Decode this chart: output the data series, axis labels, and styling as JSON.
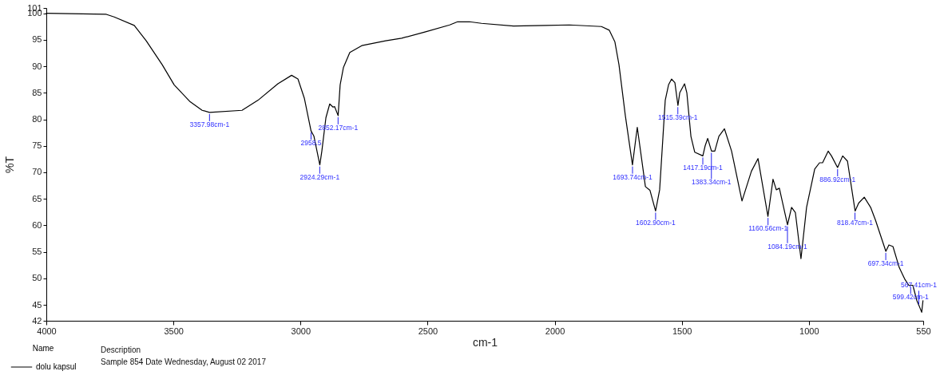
{
  "chart_data": {
    "type": "line",
    "xlabel": "cm-1",
    "ylabel": "%T",
    "legend_title": "Name",
    "legend": "bottom left",
    "marker": "none",
    "line_style": "solid",
    "xlim": [
      4000,
      550
    ],
    "xticks": [
      4000,
      3500,
      3000,
      2500,
      2000,
      1500,
      1000,
      550
    ],
    "ylim": [
      42,
      101
    ],
    "yticks": [
      42,
      45,
      50,
      55,
      60,
      65,
      70,
      75,
      80,
      85,
      90,
      95,
      100,
      101
    ],
    "series": [
      {
        "name": "dolu kapsul",
        "color": "#000000",
        "x": [
          4000,
          3764,
          3733,
          3654,
          3607,
          3544,
          3497,
          3434,
          3387,
          3358,
          3230,
          3167,
          3089,
          3035,
          3010,
          2985,
          2958.5,
          2947,
          2924,
          2916,
          2900,
          2885,
          2872,
          2866,
          2852,
          2844,
          2831,
          2806,
          2759,
          2665,
          2602,
          2508,
          2413,
          2382,
          2335,
          2288,
          2162,
          2036,
          1942,
          1816,
          1785,
          1763,
          1747,
          1722,
          1694,
          1675,
          1643,
          1625,
          1603,
          1587,
          1565,
          1552,
          1540,
          1527,
          1515,
          1508,
          1489,
          1480,
          1464,
          1449,
          1417,
          1408,
          1398,
          1383,
          1370,
          1354,
          1332,
          1304,
          1263,
          1226,
          1200,
          1161,
          1141,
          1128,
          1116,
          1084,
          1068,
          1053,
          1031,
          1009,
          977,
          958,
          946,
          924,
          911,
          887,
          867,
          848,
          818,
          804,
          782,
          757,
          738,
          697,
          685,
          669,
          644,
          622,
          607,
          591,
          575,
          566,
          556,
          551
        ],
        "values": [
          100,
          99.8,
          99.3,
          97.7,
          94.8,
          90.3,
          86.5,
          83.3,
          81.7,
          81.3,
          81.7,
          83.6,
          86.7,
          88.3,
          87.6,
          84,
          77.8,
          76.8,
          71.4,
          74,
          80.3,
          82.9,
          82.3,
          82.4,
          80.7,
          86.5,
          89.8,
          92.6,
          93.9,
          94.8,
          95.3,
          96.5,
          97.8,
          98.4,
          98.4,
          98.1,
          97.6,
          97.7,
          97.8,
          97.5,
          96.8,
          94.6,
          90.3,
          80.7,
          71.4,
          78.5,
          67.3,
          66.6,
          62.7,
          66.7,
          83.6,
          86.5,
          87.6,
          86.9,
          82.6,
          85,
          86.7,
          85,
          76.8,
          73.8,
          73.1,
          75,
          76.4,
          74,
          74,
          76.8,
          78.2,
          74,
          64.6,
          70.2,
          72.6,
          61.7,
          68.7,
          66.7,
          67,
          60.1,
          63.4,
          62.4,
          53.7,
          63.4,
          70.6,
          71.8,
          71.8,
          74,
          73.1,
          70.9,
          73.1,
          72.1,
          62.7,
          64.2,
          65.3,
          63.4,
          61,
          55.1,
          56.3,
          56,
          52,
          49.8,
          48.7,
          48.7,
          45.8,
          44.8,
          43.6,
          45.8
        ]
      }
    ],
    "annotations": [
      {
        "text": "3357.98cm-1",
        "x": 3357.98,
        "y": 81.3
      },
      {
        "text": "2958.5",
        "x": 2958.5,
        "y": 77.8
      },
      {
        "text": "2924.29cm-1",
        "x": 2924.29,
        "y": 71.4
      },
      {
        "text": "2852.17cm-1",
        "x": 2852.17,
        "y": 80.7
      },
      {
        "text": "1693.74cm-1",
        "x": 1693.74,
        "y": 71.4
      },
      {
        "text": "1602.90cm-1",
        "x": 1602.9,
        "y": 62.7
      },
      {
        "text": "1515.39cm-1",
        "x": 1515.39,
        "y": 82.6
      },
      {
        "text": "1417.19cm-1",
        "x": 1417.19,
        "y": 73.1
      },
      {
        "text": "1383.34cm-1",
        "x": 1383.34,
        "y": 74
      },
      {
        "text": "1160.56cm-1",
        "x": 1160.56,
        "y": 61.7
      },
      {
        "text": "1084.19cm-1",
        "x": 1084.19,
        "y": 60.1
      },
      {
        "text": "886.92cm-1",
        "x": 886.92,
        "y": 70.9
      },
      {
        "text": "818.47cm-1",
        "x": 818.47,
        "y": 62.7
      },
      {
        "text": "697.34cm-1",
        "x": 697.34,
        "y": 55.1
      },
      {
        "text": "599.42cm-1",
        "x": 599.42,
        "y": 48.7
      },
      {
        "text": "567.41cm-1",
        "x": 567.41,
        "y": 44.8
      },
      "Description",
      "Sample 854 Date Wednesday, August 02 2017"
    ]
  }
}
